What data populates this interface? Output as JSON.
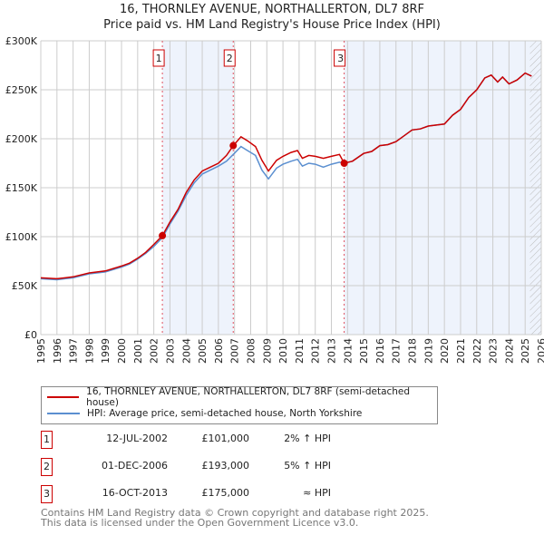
{
  "chart_data": {
    "type": "line",
    "title": "16, THORNLEY AVENUE, NORTHALLERTON, DL7 8RF",
    "subtitle": "Price paid vs. HM Land Registry's House Price Index (HPI)",
    "xlim": [
      1995,
      2026
    ],
    "ylim": [
      0,
      300000
    ],
    "grid": true,
    "x_ticks": [
      "1995",
      "1996",
      "1997",
      "1998",
      "1999",
      "2000",
      "2001",
      "2002",
      "2003",
      "2004",
      "2005",
      "2006",
      "2007",
      "2008",
      "2009",
      "2010",
      "2011",
      "2012",
      "2013",
      "2014",
      "2015",
      "2016",
      "2017",
      "2018",
      "2019",
      "2020",
      "2021",
      "2022",
      "2023",
      "2024",
      "2025",
      "2026"
    ],
    "y_ticks": [
      {
        "v": 0,
        "label": "£0"
      },
      {
        "v": 50000,
        "label": "£50K"
      },
      {
        "v": 100000,
        "label": "£100K"
      },
      {
        "v": 150000,
        "label": "£150K"
      },
      {
        "v": 200000,
        "label": "£200K"
      },
      {
        "v": 250000,
        "label": "£250K"
      },
      {
        "v": 300000,
        "label": "£300K"
      }
    ],
    "series": [
      {
        "name": "16, THORNLEY AVENUE, NORTHALLERTON, DL7 8RF (semi-detached house)",
        "color": "#cc0000",
        "x": [
          1995,
          1996,
          1996.5,
          1997,
          1998,
          1999,
          2000,
          2000.5,
          2001,
          2001.5,
          2002,
          2002.53,
          2003,
          2003.5,
          2004,
          2004.5,
          2005,
          2005.5,
          2006,
          2006.5,
          2006.92,
          2007.4,
          2007.8,
          2008.3,
          2008.7,
          2009.1,
          2009.6,
          2010,
          2010.5,
          2010.9,
          2011.2,
          2011.6,
          2012,
          2012.5,
          2013,
          2013.5,
          2013.79,
          2014.3,
          2015,
          2015.5,
          2016,
          2016.5,
          2017,
          2017.5,
          2018,
          2018.5,
          2019,
          2019.5,
          2020,
          2020.5,
          2021,
          2021.5,
          2022,
          2022.5,
          2022.9,
          2023.3,
          2023.6,
          2024,
          2024.5,
          2025,
          2025.4
        ],
        "values": [
          58000,
          57000,
          58000,
          59000,
          63000,
          65000,
          70000,
          73000,
          78000,
          84000,
          92000,
          101000,
          115000,
          128000,
          145000,
          158000,
          167000,
          171000,
          175000,
          183000,
          193000,
          202000,
          198000,
          192000,
          178000,
          167000,
          178000,
          182000,
          186000,
          188000,
          180000,
          183000,
          182000,
          180000,
          182000,
          184000,
          175000,
          177000,
          185000,
          187000,
          193000,
          194000,
          197000,
          203000,
          209000,
          210000,
          213000,
          214000,
          215000,
          224000,
          230000,
          242000,
          250000,
          262000,
          265000,
          258000,
          263000,
          256000,
          260000,
          267000,
          264000
        ]
      },
      {
        "name": "HPI: Average price, semi-detached house, North Yorkshire",
        "color": "#5b8fd0",
        "x": [
          1995,
          1996,
          1996.5,
          1997,
          1998,
          1999,
          2000,
          2000.5,
          2001,
          2001.5,
          2002,
          2002.53,
          2003,
          2003.5,
          2004,
          2004.5,
          2005,
          2005.5,
          2006,
          2006.5,
          2006.92,
          2007.4,
          2007.8,
          2008.3,
          2008.7,
          2009.1,
          2009.6,
          2010,
          2010.5,
          2010.9,
          2011.2,
          2011.6,
          2012,
          2012.5,
          2013,
          2013.5,
          2013.79,
          2014.3,
          2015,
          2015.5,
          2016,
          2016.5,
          2017,
          2017.5,
          2018,
          2018.5,
          2019,
          2019.5,
          2020,
          2020.5,
          2021,
          2021.5,
          2022,
          2022.5,
          2022.9,
          2023.3,
          2023.6,
          2024,
          2024.5,
          2025,
          2025.4
        ],
        "values": [
          57000,
          56000,
          57000,
          58000,
          62000,
          64000,
          69000,
          72000,
          77000,
          83000,
          90000,
          99000,
          113000,
          126000,
          142000,
          155000,
          164000,
          168000,
          172000,
          177000,
          184000,
          192000,
          188000,
          183000,
          168000,
          159000,
          170000,
          174000,
          177000,
          179000,
          172000,
          175000,
          174000,
          171000,
          174000,
          176000,
          175000,
          177000,
          185000,
          187000,
          193000,
          194000,
          197000,
          203000,
          209000,
          210000,
          213000,
          214000,
          215000,
          224000,
          230000,
          242000,
          250000,
          262000,
          265000,
          258000,
          263000,
          256000,
          260000,
          267000,
          264000
        ]
      }
    ],
    "sales": [
      {
        "label": "1",
        "date": "12-JUL-2002",
        "x": 2002.53,
        "price": "£101,000",
        "value": 101000,
        "hpi": "2% ↑ HPI"
      },
      {
        "label": "2",
        "date": "01-DEC-2006",
        "x": 2006.92,
        "price": "£193,000",
        "value": 193000,
        "hpi": "5% ↑ HPI"
      },
      {
        "label": "3",
        "date": "16-OCT-2013",
        "x": 2013.79,
        "price": "£175,000",
        "value": 175000,
        "hpi": "≈ HPI"
      }
    ],
    "hatch_from": 2025.3
  },
  "footer": {
    "line1": "Contains HM Land Registry data © Crown copyright and database right 2025.",
    "line2": "This data is licensed under the Open Government Licence v3.0."
  }
}
